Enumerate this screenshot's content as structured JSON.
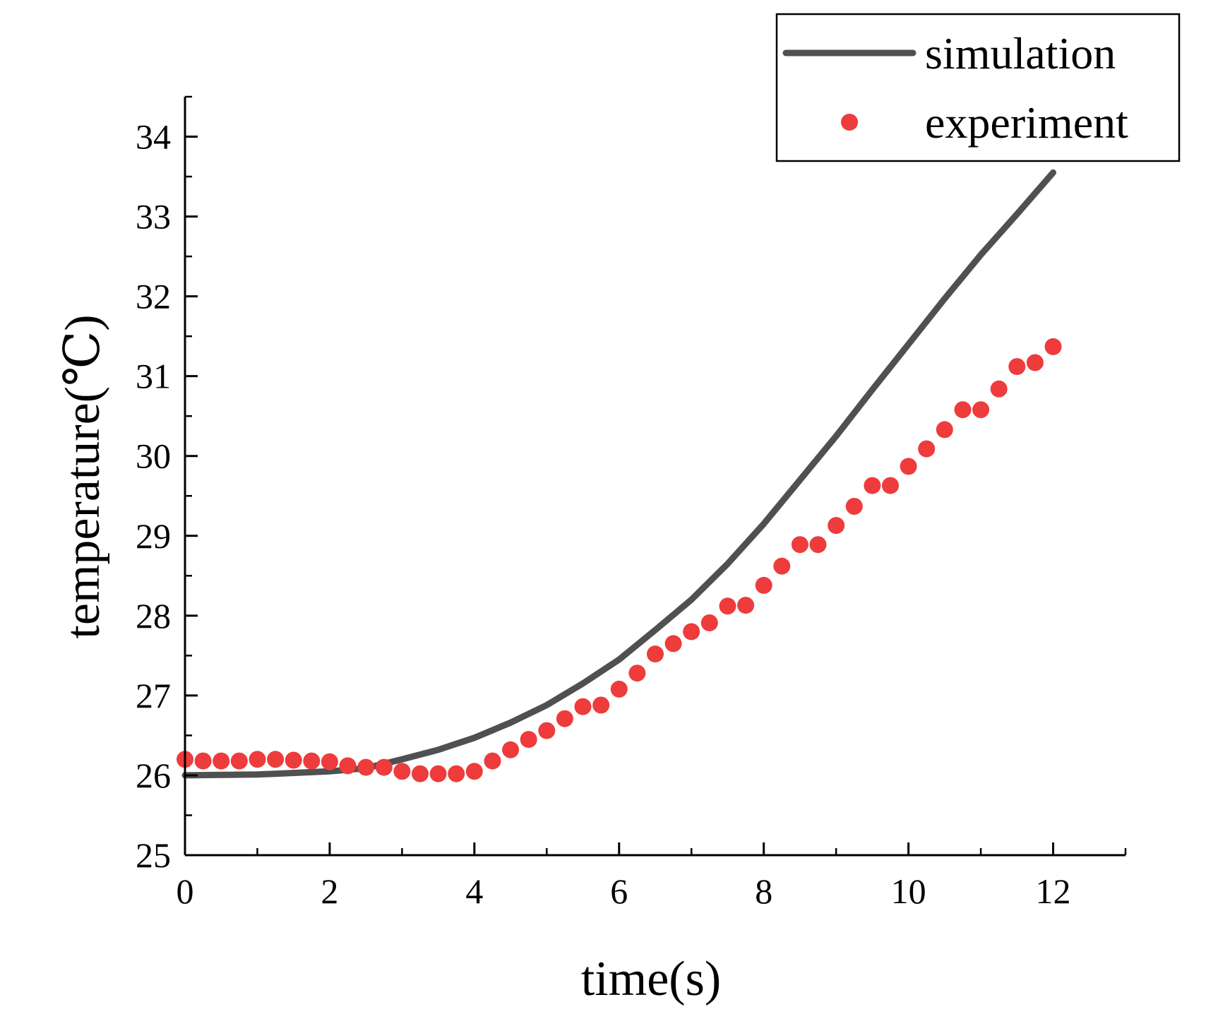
{
  "chart_data": {
    "type": "line",
    "title": "",
    "xlabel": "time(s)",
    "ylabel": "temperature(℃)",
    "xlim": [
      0,
      13
    ],
    "ylim": [
      25,
      34.5
    ],
    "x_ticks": [
      0,
      2,
      4,
      6,
      8,
      10,
      12
    ],
    "x_tick_labels": [
      "0",
      "2",
      "4",
      "6",
      "8",
      "10",
      "12"
    ],
    "y_ticks": [
      25,
      26,
      27,
      28,
      29,
      30,
      31,
      32,
      33,
      34
    ],
    "y_tick_labels": [
      "25",
      "26",
      "27",
      "28",
      "29",
      "30",
      "31",
      "32",
      "33",
      "34"
    ],
    "legend_position": "top-right",
    "series": [
      {
        "name": "simulation",
        "style": "line",
        "color": "#505050",
        "x": [
          0,
          1,
          2,
          2.5,
          3,
          3.5,
          4,
          4.5,
          5,
          5.5,
          6,
          6.5,
          7,
          7.5,
          8,
          8.5,
          9,
          9.5,
          10,
          10.5,
          11,
          11.5,
          12
        ],
        "y": [
          26.0,
          26.01,
          26.05,
          26.09,
          26.2,
          26.32,
          26.47,
          26.66,
          26.88,
          27.15,
          27.45,
          27.82,
          28.2,
          28.65,
          29.15,
          29.7,
          30.25,
          30.83,
          31.4,
          31.97,
          32.52,
          33.03,
          33.55
        ]
      },
      {
        "name": "experiment",
        "style": "scatter",
        "color": "#EE3B3B",
        "x": [
          0,
          0.25,
          0.5,
          0.75,
          1,
          1.25,
          1.5,
          1.75,
          2,
          2.25,
          2.5,
          2.75,
          3,
          3.25,
          3.5,
          3.75,
          4,
          4.25,
          4.5,
          4.75,
          5,
          5.25,
          5.5,
          5.75,
          6,
          6.25,
          6.5,
          6.75,
          7,
          7.25,
          7.5,
          7.75,
          8,
          8.25,
          8.5,
          8.75,
          9,
          9.25,
          9.5,
          9.75,
          10,
          10.25,
          10.5,
          10.75,
          11,
          11.25,
          11.5,
          11.75,
          12
        ],
        "y": [
          26.2,
          26.18,
          26.18,
          26.18,
          26.2,
          26.2,
          26.19,
          26.18,
          26.17,
          26.12,
          26.1,
          26.1,
          26.05,
          26.02,
          26.02,
          26.02,
          26.05,
          26.18,
          26.32,
          26.45,
          26.56,
          26.71,
          26.86,
          26.88,
          27.08,
          27.28,
          27.52,
          27.65,
          27.8,
          27.91,
          28.12,
          28.13,
          28.38,
          28.62,
          28.89,
          28.89,
          29.13,
          29.37,
          29.63,
          29.63,
          29.87,
          30.09,
          30.33,
          30.58,
          30.58,
          30.84,
          31.12,
          31.17,
          31.37
        ]
      }
    ]
  }
}
